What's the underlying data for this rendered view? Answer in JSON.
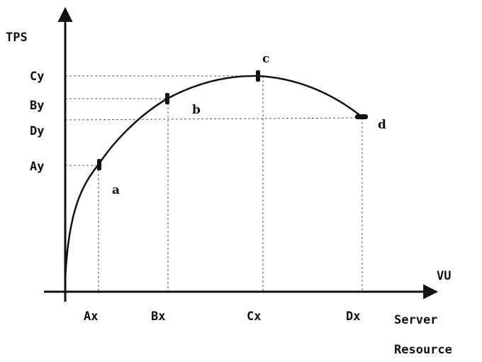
{
  "axes": {
    "y_label": "TPS",
    "x_label_top": "VU",
    "x_label_bottom_1": "Server",
    "x_label_bottom_2": "Resource"
  },
  "y_ticks": [
    "Cy",
    "By",
    "Dy",
    "Ay"
  ],
  "x_ticks": [
    "Ax",
    "Bx",
    "Cx",
    "Dx"
  ],
  "points": [
    {
      "name": "a",
      "x_label": "Ax",
      "y_label": "Ay"
    },
    {
      "name": "b",
      "x_label": "Bx",
      "y_label": "By"
    },
    {
      "name": "c",
      "x_label": "Cx",
      "y_label": "Cy"
    },
    {
      "name": "d",
      "x_label": "Dx",
      "y_label": "Dy"
    }
  ],
  "colors": {
    "line": "#111111",
    "guide": "#555555",
    "background": "#ffffff"
  }
}
